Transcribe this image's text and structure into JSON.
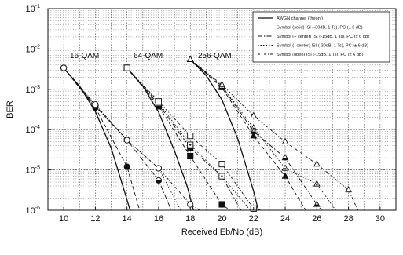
{
  "chart_data": {
    "type": "line",
    "title": "",
    "xlabel": "Received Eb/No (dB)",
    "ylabel": "BER",
    "x_ticks": [
      10,
      12,
      14,
      16,
      18,
      20,
      22,
      24,
      26,
      28,
      30
    ],
    "y_ticks": [
      {
        "value": 0.1,
        "base": "10",
        "exp": "-1"
      },
      {
        "value": 0.01,
        "base": "10",
        "exp": "-2"
      },
      {
        "value": 0.001,
        "base": "10",
        "exp": "-3"
      },
      {
        "value": 0.0001,
        "base": "10",
        "exp": "-4"
      },
      {
        "value": 1e-05,
        "base": "10",
        "exp": "-5"
      },
      {
        "value": 1e-06,
        "base": "10",
        "exp": "-6"
      }
    ],
    "xlim": [
      9,
      31
    ],
    "ylim": [
      1e-06,
      0.1
    ],
    "y_scale": "log",
    "grid": true,
    "legend_position": "top-right",
    "annotations": [
      "16-QAM",
      "64-QAM",
      "256-QAM"
    ],
    "legend": [
      {
        "label": "AWGN channel (theory)",
        "style": "solid",
        "marker": "none"
      },
      {
        "label": "Symbol (solid) ISI (-30dB, 1 Ts), PC (± 6 dB)",
        "style": "dash",
        "marker": "filled"
      },
      {
        "label": "Symbol (+ center) ISI (-15dB, 1 Ts), PC (± 6 dB)",
        "style": "dashdot",
        "marker": "half"
      },
      {
        "label": "Symbol (- center) ISI (-30dB, 1 Ts), PC (± 6 dB)",
        "style": "dot",
        "marker": "center"
      },
      {
        "label": "Symbol (open) ISI (-15dB, 1 Ts), PC (± 6 dB)",
        "style": "dotdash",
        "marker": "open"
      }
    ],
    "series": [
      {
        "group": "16-QAM",
        "legend_index": 0,
        "marker_shape": "none",
        "x": [
          10,
          11,
          12,
          13,
          13.6,
          14.2
        ],
        "y": [
          0.0033,
          0.0012,
          0.00028,
          3.5e-05,
          6e-06,
          1e-06
        ]
      },
      {
        "group": "16-QAM",
        "legend_index": 1,
        "marker_shape": "circle",
        "x": [
          10,
          12,
          14,
          14.8
        ],
        "y": [
          0.0034,
          0.00035,
          1.2e-05,
          1e-06
        ]
      },
      {
        "group": "16-QAM",
        "legend_index": 2,
        "marker_shape": "circle",
        "x": [
          10,
          12,
          14,
          16,
          16.8
        ],
        "y": [
          0.0034,
          0.00038,
          5.5e-05,
          5.5e-06,
          1e-06
        ]
      },
      {
        "group": "16-QAM",
        "legend_index": 3,
        "marker_shape": "circle",
        "x": [
          10,
          12,
          14,
          16,
          17.4
        ],
        "y": [
          0.0034,
          0.0004,
          5.5e-05,
          1.1e-05,
          1e-06
        ]
      },
      {
        "group": "16-QAM",
        "legend_index": 4,
        "marker_shape": "circle",
        "x": [
          10,
          12,
          14,
          16,
          18,
          18.6
        ],
        "y": [
          0.0034,
          0.00042,
          5.5e-05,
          1.1e-05,
          1.4e-06,
          1e-06
        ]
      },
      {
        "group": "64-QAM",
        "legend_index": 0,
        "marker_shape": "none",
        "x": [
          14,
          15,
          16,
          17,
          17.8,
          18.2
        ],
        "y": [
          0.0033,
          0.0012,
          0.00027,
          3e-05,
          4e-06,
          1e-06
        ]
      },
      {
        "group": "64-QAM",
        "legend_index": 1,
        "marker_shape": "square",
        "x": [
          14,
          16,
          18,
          20,
          20.5
        ],
        "y": [
          0.0034,
          0.00038,
          2.2e-05,
          1.4e-06,
          1e-06
        ]
      },
      {
        "group": "64-QAM",
        "legend_index": 2,
        "marker_shape": "square",
        "x": [
          14,
          16,
          18,
          20,
          21.2
        ],
        "y": [
          0.0034,
          0.00042,
          3.5e-05,
          7e-06,
          1e-06
        ]
      },
      {
        "group": "64-QAM",
        "legend_index": 3,
        "marker_shape": "square",
        "x": [
          14,
          16,
          18,
          20,
          21.8
        ],
        "y": [
          0.0034,
          0.00046,
          4.2e-05,
          7e-06,
          1e-06
        ]
      },
      {
        "group": "64-QAM",
        "legend_index": 4,
        "marker_shape": "square",
        "x": [
          14,
          16,
          18,
          20,
          22,
          22.5
        ],
        "y": [
          0.0034,
          0.0005,
          7e-05,
          1.4e-05,
          1.1e-06,
          1e-06
        ]
      },
      {
        "group": "256-QAM",
        "legend_index": 0,
        "marker_shape": "none",
        "x": [
          18,
          19,
          20,
          21,
          22,
          22.3
        ],
        "y": [
          0.0055,
          0.0022,
          0.00055,
          6e-05,
          3e-06,
          1e-06
        ]
      },
      {
        "group": "256-QAM",
        "legend_index": 1,
        "marker_shape": "triangle",
        "x": [
          18,
          20,
          22,
          24,
          25.3
        ],
        "y": [
          0.0055,
          0.0011,
          7e-05,
          7e-06,
          1e-06
        ]
      },
      {
        "group": "256-QAM",
        "legend_index": 2,
        "marker_shape": "triangle",
        "x": [
          18,
          20,
          22,
          24,
          26,
          26.3
        ],
        "y": [
          0.0055,
          0.0012,
          9e-05,
          2e-05,
          1.4e-06,
          1e-06
        ]
      },
      {
        "group": "256-QAM",
        "legend_index": 3,
        "marker_shape": "triangle",
        "x": [
          18,
          20,
          22,
          24,
          26,
          27.2
        ],
        "y": [
          0.0055,
          0.0012,
          0.00011,
          1.1e-05,
          4.5e-06,
          1e-06
        ]
      },
      {
        "group": "256-QAM",
        "legend_index": 4,
        "marker_shape": "triangle",
        "x": [
          18,
          20,
          22,
          24,
          26,
          28,
          28.6
        ],
        "y": [
          0.0055,
          0.0013,
          0.00022,
          5e-05,
          1.4e-05,
          3.2e-06,
          1e-06
        ]
      }
    ]
  }
}
